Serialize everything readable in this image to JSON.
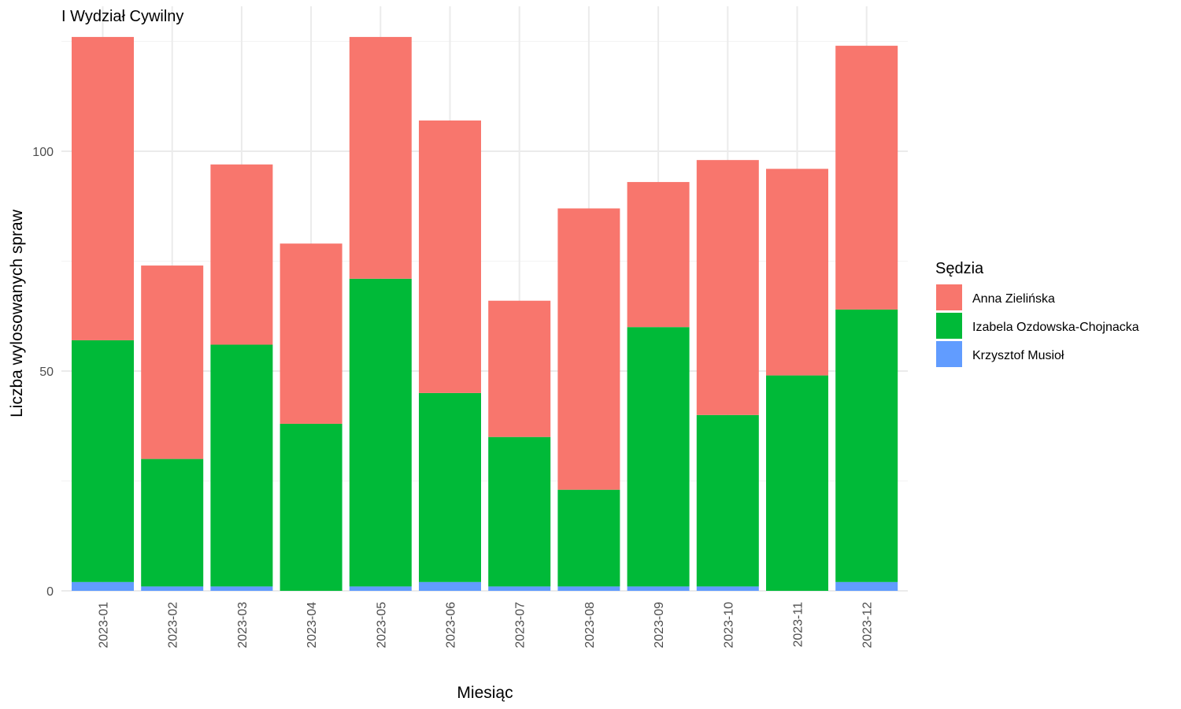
{
  "chart_data": {
    "type": "bar",
    "stacked": true,
    "title": "I Wydział Cywilny",
    "xlabel": "Miesiąc",
    "ylabel": "Liczba wylosowanych spraw",
    "categories": [
      "2023-01",
      "2023-02",
      "2023-03",
      "2023-04",
      "2023-05",
      "2023-06",
      "2023-07",
      "2023-08",
      "2023-09",
      "2023-10",
      "2023-11",
      "2023-12"
    ],
    "yticks": [
      0,
      50,
      100
    ],
    "ylim": [
      0,
      126
    ],
    "grid": true,
    "legend": {
      "title": "Sędzia",
      "position": "right"
    },
    "series": [
      {
        "name": "Krzysztof Musioł",
        "color": "#619CFF",
        "values": [
          2,
          1,
          1,
          0,
          1,
          2,
          1,
          1,
          1,
          1,
          0,
          2
        ]
      },
      {
        "name": "Izabela Ozdowska-Chojnacka",
        "color": "#00BA38",
        "values": [
          55,
          29,
          55,
          38,
          70,
          43,
          34,
          22,
          59,
          39,
          49,
          62
        ]
      },
      {
        "name": "Anna Zielińska",
        "color": "#F8766D",
        "values": [
          69,
          44,
          41,
          41,
          55,
          62,
          31,
          64,
          33,
          58,
          47,
          60
        ]
      }
    ],
    "legend_order": [
      "Anna Zielińska",
      "Izabela Ozdowska-Chojnacka",
      "Krzysztof Musioł"
    ]
  }
}
